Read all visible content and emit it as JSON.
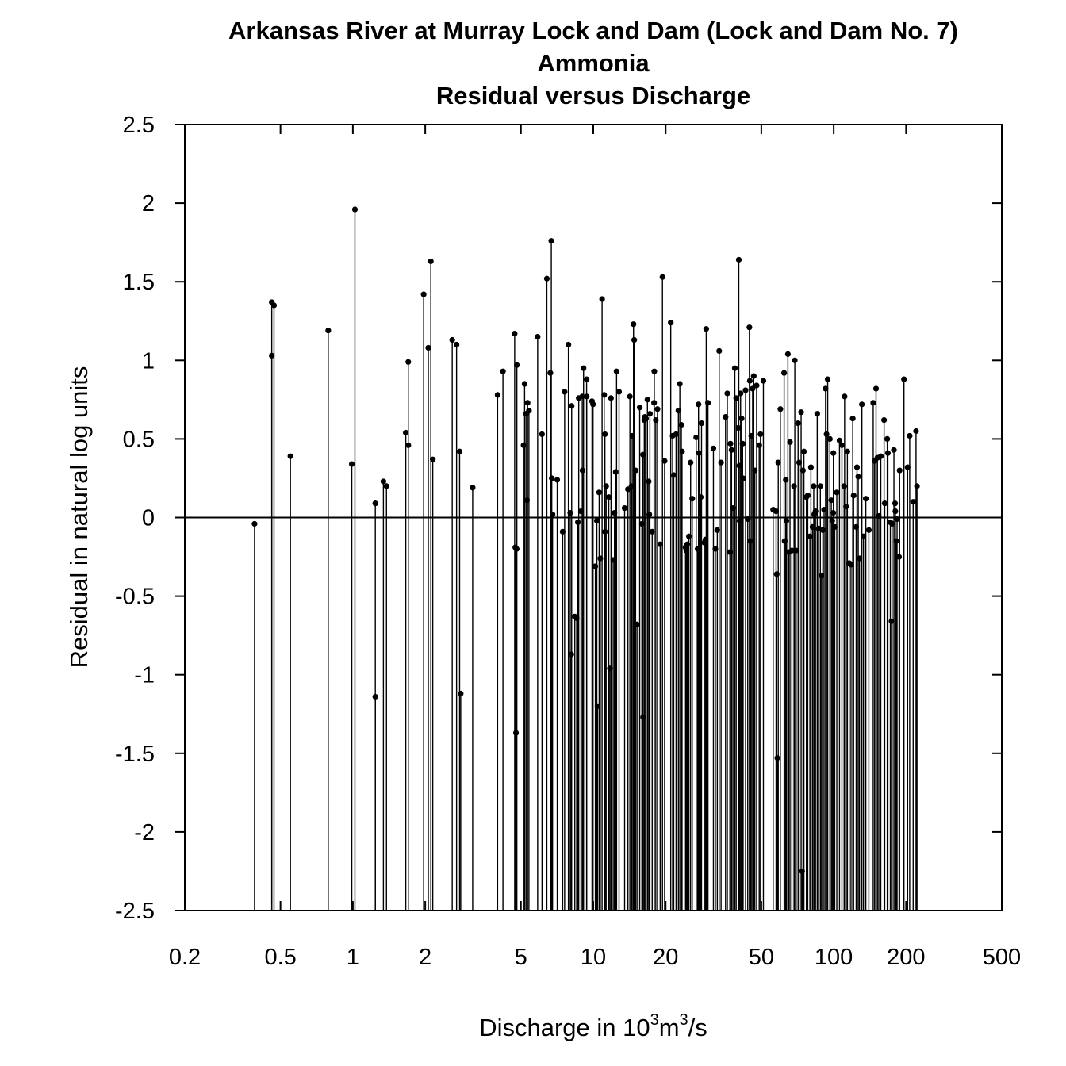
{
  "chart_data": {
    "type": "scatter",
    "title_lines": [
      "Arkansas River at Murray Lock and Dam (Lock and Dam No. 7)",
      "Ammonia",
      "Residual versus Discharge"
    ],
    "ylabel": "Residual in natural log units",
    "xlabel": {
      "prefix": "Discharge in 10",
      "sup1": "3",
      "mid": "m",
      "sup2": "3",
      "suffix": "/s"
    },
    "x_scale": "log",
    "xlim": [
      0.2,
      500
    ],
    "ylim": [
      -2.5,
      2.5
    ],
    "x_ticks": [
      0.2,
      0.5,
      1,
      2,
      5,
      10,
      20,
      50,
      100,
      200,
      500
    ],
    "x_tick_labels": [
      "0.2",
      "0.5",
      "1",
      "2",
      "5",
      "10",
      "20",
      "50",
      "100",
      "200",
      "500"
    ],
    "y_ticks": [
      2.5,
      2,
      1.5,
      1,
      0.5,
      0,
      -0.5,
      -1,
      -1.5,
      -2,
      -2.5
    ],
    "y_tick_labels": [
      "2.5",
      "2",
      "1.5",
      "1",
      "0.5",
      "0",
      "-0.5",
      "-1",
      "-1.5",
      "-2",
      "-2.5"
    ],
    "reference_line_y": 0,
    "grid": false,
    "series": [
      {
        "points": [
          [
            0.39,
            -0.04
          ],
          [
            0.46,
            1.37
          ],
          [
            0.46,
            1.03
          ],
          [
            0.47,
            1.35
          ],
          [
            0.55,
            0.39
          ],
          [
            0.79,
            1.19
          ],
          [
            0.99,
            0.34
          ],
          [
            1.02,
            1.96
          ],
          [
            1.24,
            0.09
          ],
          [
            1.24,
            -1.14
          ],
          [
            1.34,
            0.23
          ],
          [
            1.38,
            0.2
          ],
          [
            1.66,
            0.54
          ],
          [
            1.7,
            0.99
          ],
          [
            1.7,
            0.46
          ],
          [
            1.97,
            1.42
          ],
          [
            2.06,
            1.08
          ],
          [
            2.11,
            1.63
          ],
          [
            2.15,
            0.37
          ],
          [
            2.59,
            1.13
          ],
          [
            2.7,
            1.1
          ],
          [
            2.78,
            0.42
          ],
          [
            2.81,
            -1.12
          ],
          [
            3.15,
            0.19
          ],
          [
            4.0,
            0.78
          ],
          [
            4.21,
            0.93
          ],
          [
            4.71,
            1.17
          ],
          [
            4.74,
            -0.19
          ],
          [
            4.77,
            -1.37
          ],
          [
            4.8,
            -0.2
          ],
          [
            4.81,
            0.97
          ],
          [
            5.13,
            0.46
          ],
          [
            5.18,
            0.85
          ],
          [
            5.25,
            0.66
          ],
          [
            5.3,
            0.11
          ],
          [
            5.33,
            0.73
          ],
          [
            5.4,
            0.68
          ],
          [
            5.87,
            1.15
          ],
          [
            6.12,
            0.53
          ],
          [
            6.41,
            1.52
          ],
          [
            6.63,
            0.92
          ],
          [
            6.69,
            1.76
          ],
          [
            6.72,
            0.25
          ],
          [
            6.77,
            0.02
          ],
          [
            7.08,
            0.24
          ],
          [
            7.46,
            -0.09
          ],
          [
            7.6,
            0.8
          ],
          [
            7.88,
            1.1
          ],
          [
            8.02,
            0.03
          ],
          [
            8.1,
            -0.87
          ],
          [
            8.13,
            0.71
          ],
          [
            8.38,
            -0.63
          ],
          [
            8.53,
            -0.64
          ],
          [
            8.63,
            -0.03
          ],
          [
            8.7,
            0.76
          ],
          [
            8.89,
            0.04
          ],
          [
            9.0,
            0.77
          ],
          [
            9.02,
            0.3
          ],
          [
            9.11,
            0.95
          ],
          [
            9.38,
            0.88
          ],
          [
            9.39,
            0.77
          ],
          [
            9.88,
            0.74
          ],
          [
            9.98,
            0.72
          ],
          [
            10.2,
            -0.31
          ],
          [
            10.35,
            -0.02
          ],
          [
            10.42,
            -1.2
          ],
          [
            10.58,
            0.16
          ],
          [
            10.7,
            -0.26
          ],
          [
            10.88,
            1.39
          ],
          [
            11.1,
            0.78
          ],
          [
            11.19,
            -0.09
          ],
          [
            11.18,
            0.53
          ],
          [
            11.31,
            0.2
          ],
          [
            11.6,
            0.13
          ],
          [
            11.72,
            -0.96
          ],
          [
            11.85,
            0.76
          ],
          [
            12.1,
            -0.27
          ],
          [
            12.25,
            0.03
          ],
          [
            12.4,
            0.29
          ],
          [
            12.5,
            0.93
          ],
          [
            12.8,
            0.8
          ],
          [
            13.5,
            0.06
          ],
          [
            13.94,
            0.18
          ],
          [
            14.2,
            0.77
          ],
          [
            14.42,
            0.2
          ],
          [
            14.52,
            0.52
          ],
          [
            14.7,
            1.23
          ],
          [
            14.8,
            1.13
          ],
          [
            15.0,
            0.3
          ],
          [
            15.2,
            -0.68
          ],
          [
            15.6,
            0.7
          ],
          [
            15.93,
            -0.04
          ],
          [
            16.1,
            0.4
          ],
          [
            16.13,
            -1.27
          ],
          [
            16.3,
            0.62
          ],
          [
            16.39,
            0.64
          ],
          [
            16.56,
            0.63
          ],
          [
            16.8,
            0.75
          ],
          [
            17.0,
            0.23
          ],
          [
            17.1,
            0.02
          ],
          [
            17.2,
            0.66
          ],
          [
            17.58,
            -0.09
          ],
          [
            17.9,
            0.73
          ],
          [
            17.94,
            0.93
          ],
          [
            18.2,
            0.62
          ],
          [
            18.5,
            0.69
          ],
          [
            18.98,
            -0.17
          ],
          [
            19.4,
            1.53
          ],
          [
            19.8,
            0.36
          ],
          [
            21.0,
            1.24
          ],
          [
            21.38,
            0.52
          ],
          [
            21.61,
            0.27
          ],
          [
            22.1,
            0.53
          ],
          [
            22.6,
            0.68
          ],
          [
            22.91,
            0.85
          ],
          [
            23.24,
            0.59
          ],
          [
            23.4,
            0.42
          ],
          [
            24.2,
            -0.19
          ],
          [
            24.39,
            -0.21
          ],
          [
            24.6,
            -0.17
          ],
          [
            25.0,
            -0.12
          ],
          [
            25.4,
            0.35
          ],
          [
            25.8,
            0.12
          ],
          [
            26.8,
            0.51
          ],
          [
            27.17,
            -0.2
          ],
          [
            27.4,
            0.72
          ],
          [
            27.53,
            0.41
          ],
          [
            28.0,
            0.13
          ],
          [
            28.2,
            0.6
          ],
          [
            29.0,
            -0.16
          ],
          [
            29.3,
            -0.14
          ],
          [
            29.5,
            1.2
          ],
          [
            30.0,
            0.73
          ],
          [
            31.6,
            0.44
          ],
          [
            32.2,
            -0.2
          ],
          [
            32.8,
            -0.08
          ],
          [
            33.4,
            1.06
          ],
          [
            34.0,
            0.35
          ],
          [
            35.5,
            0.64
          ],
          [
            36.1,
            0.79
          ],
          [
            37.0,
            -0.22
          ],
          [
            37.2,
            0.47
          ],
          [
            37.6,
            0.43
          ],
          [
            38.1,
            0.06
          ],
          [
            38.8,
            0.95
          ],
          [
            39.3,
            0.76
          ],
          [
            40.1,
            0.57
          ],
          [
            40.3,
            1.64
          ],
          [
            40.5,
            0.33
          ],
          [
            40.6,
            -0.02
          ],
          [
            41.0,
            0.79
          ],
          [
            41.4,
            0.63
          ],
          [
            41.8,
            0.47
          ],
          [
            42.0,
            0.25
          ],
          [
            43.0,
            0.81
          ],
          [
            43.9,
            -0.01
          ],
          [
            44.6,
            1.21
          ],
          [
            44.8,
            0.87
          ],
          [
            45.0,
            -0.15
          ],
          [
            45.4,
            0.52
          ],
          [
            46.0,
            0.82
          ],
          [
            46.5,
            0.9
          ],
          [
            47.0,
            0.3
          ],
          [
            47.8,
            0.84
          ],
          [
            49.0,
            0.46
          ],
          [
            49.6,
            0.53
          ],
          [
            51.0,
            0.87
          ],
          [
            56.0,
            0.05
          ],
          [
            57.6,
            0.04
          ],
          [
            57.95,
            -0.36
          ],
          [
            58.29,
            -1.53
          ],
          [
            58.8,
            0.35
          ],
          [
            60.0,
            0.69
          ],
          [
            62.2,
            0.92
          ],
          [
            62.5,
            -0.15
          ],
          [
            63.2,
            0.24
          ],
          [
            63.6,
            -0.02
          ],
          [
            64.5,
            1.04
          ],
          [
            65.0,
            -0.22
          ],
          [
            65.8,
            0.48
          ],
          [
            67.0,
            -0.21
          ],
          [
            68.4,
            0.2
          ],
          [
            68.9,
            1.0
          ],
          [
            69.8,
            -0.21
          ],
          [
            71.1,
            0.6
          ],
          [
            71.8,
            0.35
          ],
          [
            73.2,
            0.67
          ],
          [
            73.9,
            -2.25
          ],
          [
            74.5,
            0.3
          ],
          [
            75.2,
            0.42
          ],
          [
            77.0,
            0.13
          ],
          [
            78.0,
            0.14
          ],
          [
            79.6,
            -0.12
          ],
          [
            80.4,
            0.32
          ],
          [
            81.6,
            -0.06
          ],
          [
            82.6,
            0.2
          ],
          [
            83.0,
            0.02
          ],
          [
            84.0,
            0.04
          ],
          [
            85.4,
            0.66
          ],
          [
            86.5,
            -0.07
          ],
          [
            88.0,
            0.2
          ],
          [
            89.0,
            -0.37
          ],
          [
            90.1,
            -0.08
          ],
          [
            91.2,
            0.05
          ],
          [
            92.5,
            0.82
          ],
          [
            93.4,
            0.53
          ],
          [
            94.4,
            0.88
          ],
          [
            96.4,
            0.5
          ],
          [
            97.7,
            0.11
          ],
          [
            98.6,
            -0.02
          ],
          [
            99.6,
            0.03
          ],
          [
            99.7,
            0.41
          ],
          [
            101.0,
            -0.06
          ],
          [
            103.0,
            0.16
          ],
          [
            105.7,
            0.49
          ],
          [
            108.2,
            0.46
          ],
          [
            110.5,
            0.2
          ],
          [
            111.0,
            0.77
          ],
          [
            112.6,
            0.07
          ],
          [
            114.0,
            0.42
          ],
          [
            116.0,
            -0.29
          ],
          [
            118.0,
            -0.3
          ],
          [
            120.0,
            0.63
          ],
          [
            121.0,
            0.14
          ],
          [
            124.0,
            -0.06
          ],
          [
            125.0,
            0.32
          ],
          [
            126.5,
            0.26
          ],
          [
            128.0,
            -0.26
          ],
          [
            131.0,
            0.72
          ],
          [
            133.0,
            -0.12
          ],
          [
            136.0,
            0.12
          ],
          [
            140.0,
            -0.08
          ],
          [
            146.0,
            0.73
          ],
          [
            148.0,
            0.36
          ],
          [
            150.0,
            0.82
          ],
          [
            152.0,
            0.38
          ],
          [
            154.0,
            0.01
          ],
          [
            157.0,
            0.39
          ],
          [
            162.0,
            0.62
          ],
          [
            163.0,
            0.09
          ],
          [
            167.0,
            0.5
          ],
          [
            168.0,
            0.41
          ],
          [
            172.0,
            -0.03
          ],
          [
            174.0,
            -0.66
          ],
          [
            175.0,
            -0.04
          ],
          [
            178.0,
            0.43
          ],
          [
            180.0,
            0.09
          ],
          [
            180.5,
            0.04
          ],
          [
            182.0,
            -0.15
          ],
          [
            183.5,
            -0.01
          ],
          [
            187.0,
            -0.25
          ],
          [
            188.0,
            0.3
          ],
          [
            196.0,
            0.88
          ],
          [
            203.0,
            0.32
          ],
          [
            207.0,
            0.52
          ],
          [
            214.0,
            0.1
          ],
          [
            220.0,
            0.55
          ],
          [
            222.0,
            0.2
          ]
        ]
      }
    ]
  }
}
